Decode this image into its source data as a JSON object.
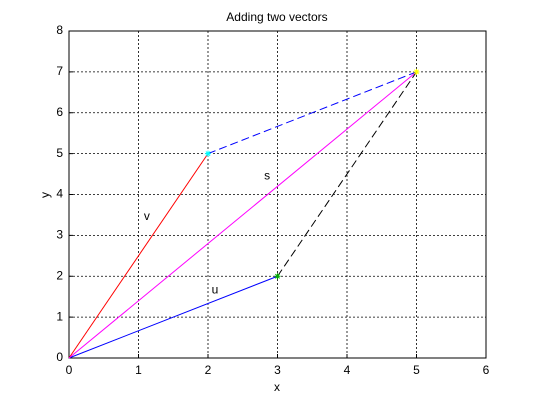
{
  "chart_data": {
    "type": "line",
    "title": "Adding two vectors",
    "x_label": "x",
    "y_label": "y",
    "xlim": [
      0,
      6
    ],
    "ylim": [
      0,
      8
    ],
    "xticks": [
      0,
      1,
      2,
      3,
      4,
      5,
      6
    ],
    "yticks": [
      0,
      1,
      2,
      3,
      4,
      5,
      6,
      7,
      8
    ],
    "grid": true,
    "series": [
      {
        "color": "#0000ff",
        "dashed": false,
        "x": [
          0,
          3
        ],
        "values": [
          0,
          2
        ]
      },
      {
        "color": "#ff0000",
        "dashed": false,
        "x": [
          0,
          2
        ],
        "values": [
          0,
          5
        ]
      },
      {
        "color": "#ff00ff",
        "dashed": false,
        "x": [
          0,
          5
        ],
        "values": [
          0,
          7
        ]
      },
      {
        "color": "#0000ff",
        "dashed": true,
        "x": [
          2,
          5
        ],
        "values": [
          5,
          7
        ]
      },
      {
        "color": "#000000",
        "dashed": true,
        "x": [
          3,
          5
        ],
        "values": [
          2,
          7
        ]
      }
    ],
    "markers": [
      {
        "color": "#00ffff",
        "x": 2,
        "y": 5
      },
      {
        "color": "#00aa00",
        "x": 3,
        "y": 2
      },
      {
        "color": "#ffff00",
        "x": 5,
        "y": 7
      }
    ],
    "annotations": [
      {
        "text": "u",
        "x": 2.1,
        "y": 1.65
      },
      {
        "text": "v",
        "x": 1.12,
        "y": 3.45
      },
      {
        "text": "s",
        "x": 2.85,
        "y": 4.45
      }
    ]
  }
}
